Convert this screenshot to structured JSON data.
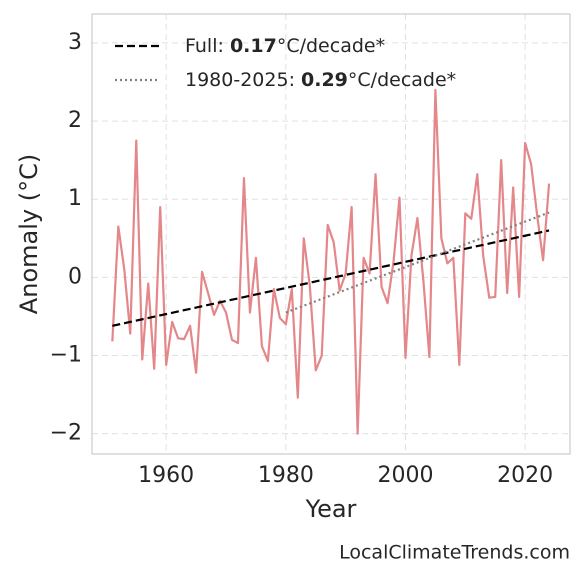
{
  "chart_data": {
    "type": "line",
    "x_label": "Year",
    "y_label": "Anomaly (°C)",
    "source": "LocalClimateTrends.com",
    "xlim": [
      1947.6,
      2027.5
    ],
    "ylim": [
      -2.26,
      3.37
    ],
    "xticks": [
      1960,
      1980,
      2000,
      2020
    ],
    "yticks": [
      {
        "value": -2,
        "label": "−2"
      },
      {
        "value": -1,
        "label": "−1"
      },
      0,
      1,
      2,
      3
    ],
    "grid": true,
    "legend": "upper left",
    "series": [
      {
        "color": "#e4878a",
        "dash": "solid",
        "x": [
          1951,
          1952,
          1953,
          1954,
          1955,
          1956,
          1957,
          1958,
          1959,
          1960,
          1961,
          1962,
          1963,
          1964,
          1965,
          1966,
          1967,
          1968,
          1969,
          1970,
          1971,
          1972,
          1973,
          1974,
          1975,
          1976,
          1977,
          1978,
          1979,
          1980,
          1981,
          1982,
          1983,
          1984,
          1985,
          1986,
          1987,
          1988,
          1989,
          1990,
          1991,
          1992,
          1993,
          1994,
          1995,
          1996,
          1997,
          1998,
          1999,
          2000,
          2001,
          2002,
          2003,
          2004,
          2005,
          2006,
          2007,
          2008,
          2009,
          2010,
          2011,
          2012,
          2013,
          2014,
          2015,
          2016,
          2017,
          2018,
          2019,
          2020,
          2021,
          2022,
          2023,
          2024
        ],
        "values": [
          -0.82,
          0.65,
          0.1,
          -0.72,
          1.75,
          -1.05,
          -0.08,
          -1.17,
          0.9,
          -1.12,
          -0.57,
          -0.78,
          -0.79,
          -0.62,
          -1.22,
          0.07,
          -0.2,
          -0.48,
          -0.3,
          -0.45,
          -0.8,
          -0.84,
          1.27,
          -0.45,
          0.25,
          -0.88,
          -1.07,
          -0.15,
          -0.52,
          -0.6,
          -0.15,
          -1.54,
          0.5,
          -0.1,
          -1.19,
          -1.0,
          0.67,
          0.45,
          -0.17,
          0.05,
          0.9,
          -2.0,
          0.25,
          0.05,
          1.32,
          -0.12,
          -0.33,
          0.2,
          1.02,
          -1.03,
          0.28,
          0.76,
          -0.05,
          -1.02,
          2.4,
          0.5,
          0.18,
          0.25,
          -1.12,
          0.82,
          0.75,
          1.32,
          0.27,
          -0.26,
          -0.25,
          1.5,
          -0.2,
          1.15,
          -0.25,
          1.72,
          1.45,
          0.8,
          0.22,
          1.2
        ]
      },
      {
        "name": [
          "Full: ",
          "0.17",
          "°C/decade*"
        ],
        "color": "#000000",
        "dash": "dashed",
        "x": [
          1951,
          2024
        ],
        "values": [
          -0.62,
          0.6
        ]
      },
      {
        "name": [
          "1980-2025: ",
          "0.29",
          "°C/decade*"
        ],
        "color": "#808080",
        "dash": "dotted",
        "x": [
          1980,
          2024
        ],
        "values": [
          -0.45,
          0.83
        ]
      }
    ]
  }
}
